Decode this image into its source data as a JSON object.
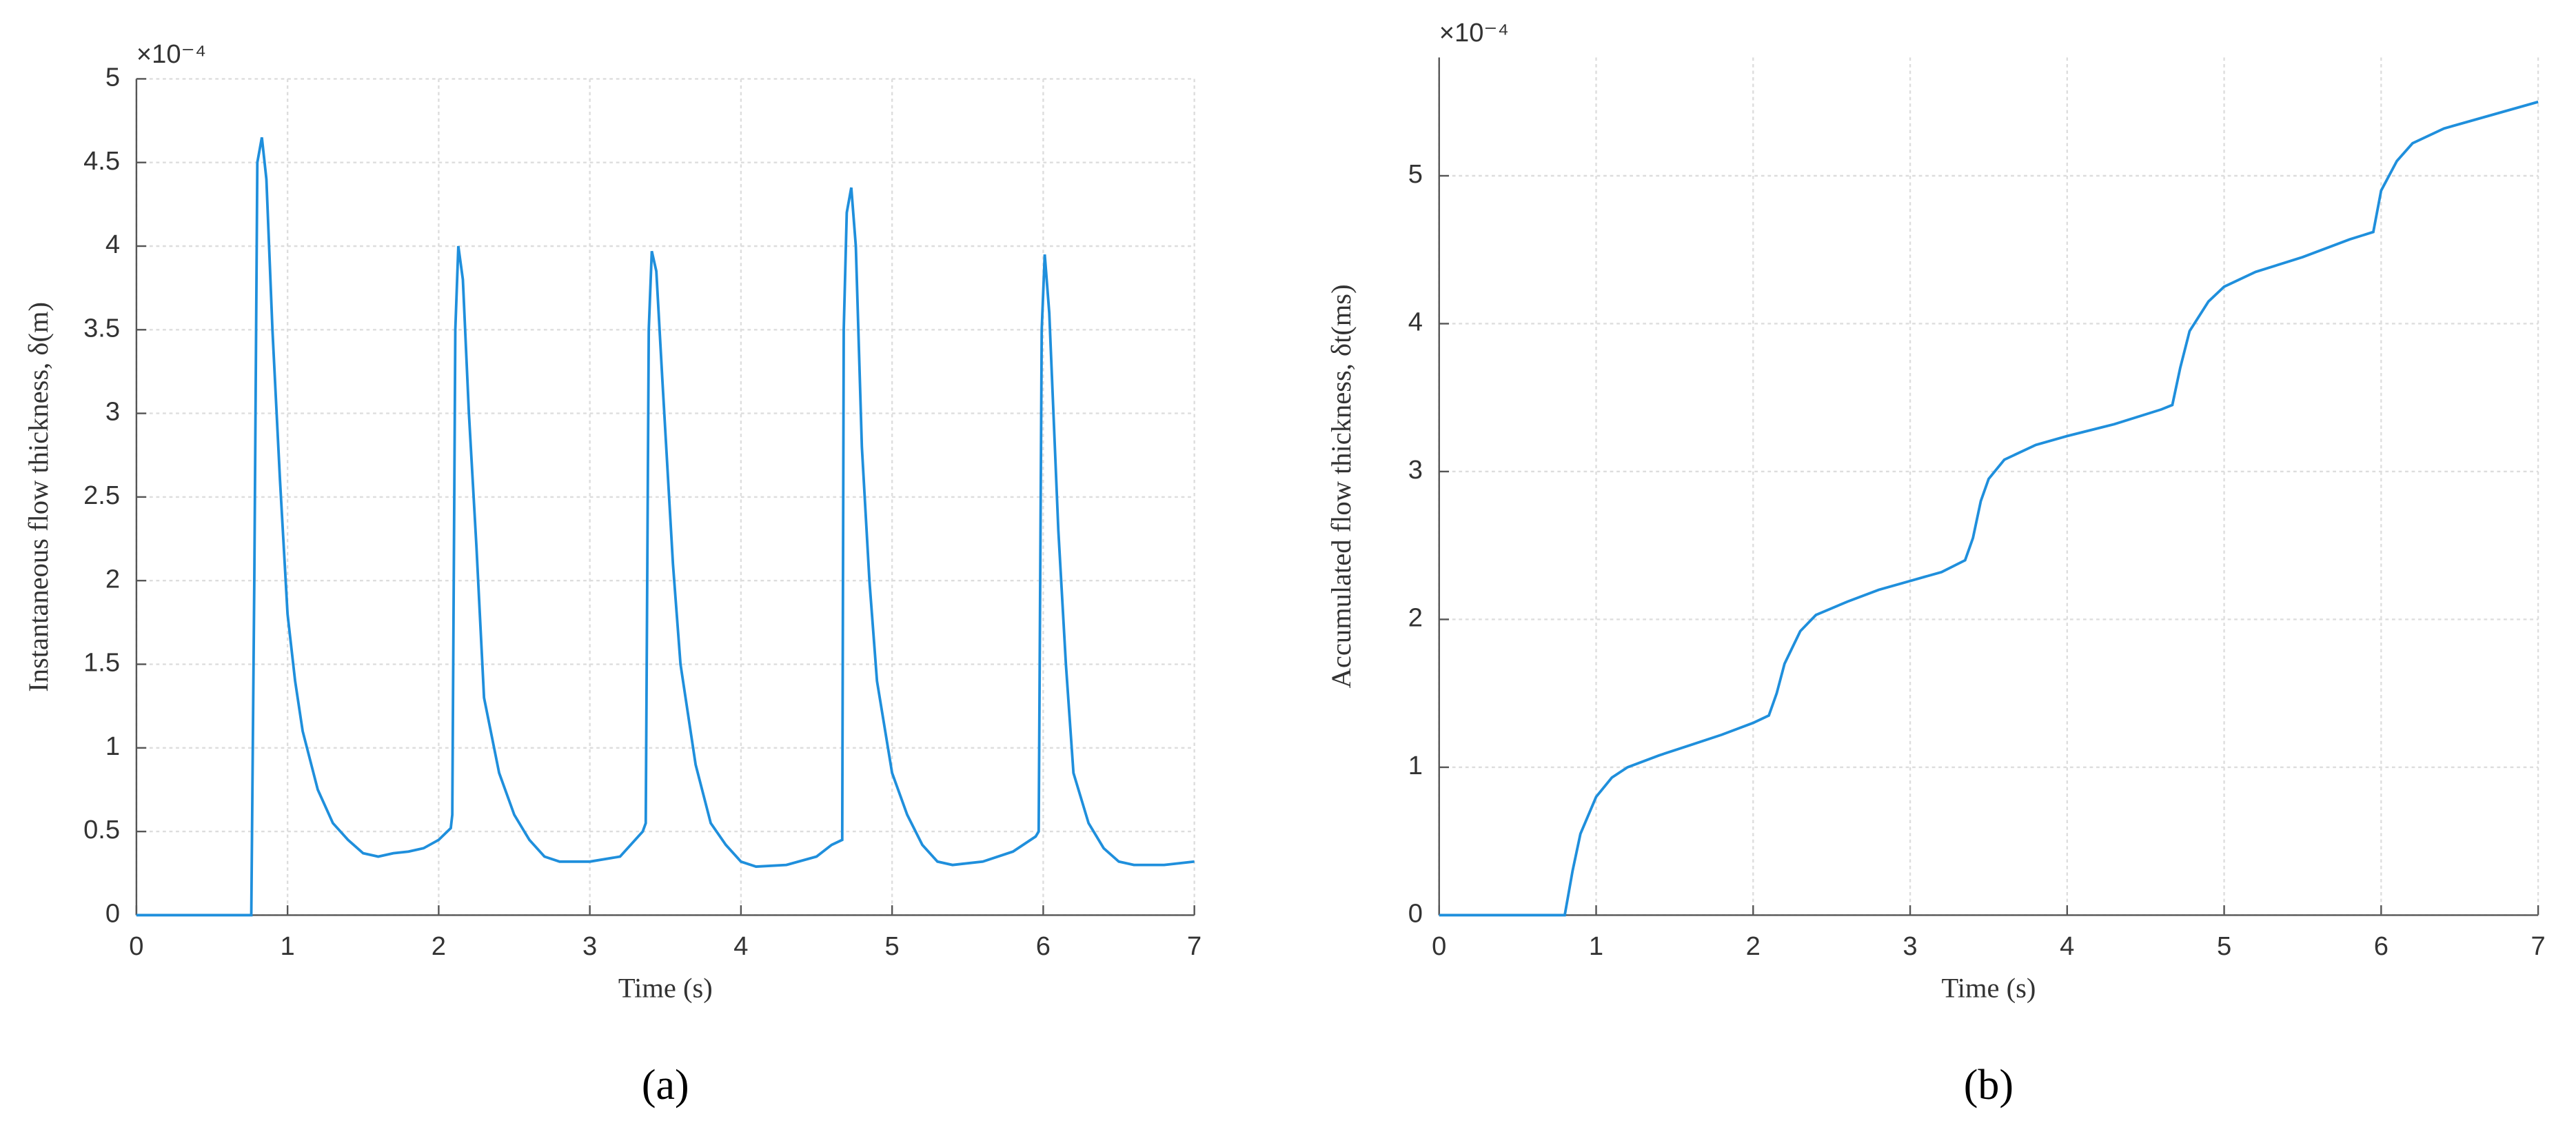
{
  "chart_data": [
    {
      "type": "line",
      "caption": "(a)",
      "exponent_label": "×10⁻⁴",
      "xlabel": "Time (s)",
      "ylabel": "Instantaneous flow thickness, δ(m)",
      "xlim": [
        0,
        7
      ],
      "xticks": [
        0,
        1,
        2,
        3,
        4,
        5,
        6,
        7
      ],
      "ylim": [
        0,
        5
      ],
      "yticks": [
        0,
        0.5,
        1,
        1.5,
        2,
        2.5,
        3,
        3.5,
        4,
        4.5,
        5
      ],
      "grid": true,
      "x": [
        0,
        0.75,
        0.76,
        0.78,
        0.8,
        0.83,
        0.86,
        0.9,
        0.95,
        1.0,
        1.05,
        1.1,
        1.2,
        1.3,
        1.4,
        1.5,
        1.6,
        1.7,
        1.8,
        1.9,
        2.0,
        2.08,
        2.09,
        2.11,
        2.13,
        2.16,
        2.2,
        2.25,
        2.3,
        2.4,
        2.5,
        2.6,
        2.7,
        2.8,
        3.0,
        3.2,
        3.35,
        3.37,
        3.39,
        3.41,
        3.44,
        3.48,
        3.55,
        3.6,
        3.7,
        3.8,
        3.9,
        4.0,
        4.1,
        4.3,
        4.5,
        4.6,
        4.67,
        4.68,
        4.7,
        4.73,
        4.76,
        4.8,
        4.85,
        4.9,
        5.0,
        5.1,
        5.2,
        5.3,
        5.4,
        5.6,
        5.8,
        5.95,
        5.97,
        5.99,
        6.01,
        6.04,
        6.1,
        6.15,
        6.2,
        6.3,
        6.4,
        6.5,
        6.6,
        6.8,
        7.0
      ],
      "series": [
        {
          "color": "#1f8fdc",
          "values": [
            0,
            0,
            0,
            2.0,
            4.5,
            4.65,
            4.4,
            3.5,
            2.6,
            1.8,
            1.4,
            1.1,
            0.75,
            0.55,
            0.45,
            0.37,
            0.35,
            0.37,
            0.38,
            0.4,
            0.45,
            0.52,
            0.6,
            3.5,
            4.0,
            3.8,
            3.0,
            2.2,
            1.3,
            0.85,
            0.6,
            0.45,
            0.35,
            0.32,
            0.32,
            0.35,
            0.5,
            0.55,
            3.5,
            3.97,
            3.85,
            3.2,
            2.1,
            1.5,
            0.9,
            0.55,
            0.42,
            0.32,
            0.29,
            0.3,
            0.35,
            0.42,
            0.45,
            3.5,
            4.2,
            4.35,
            4.0,
            2.8,
            2.0,
            1.4,
            0.85,
            0.6,
            0.42,
            0.32,
            0.3,
            0.32,
            0.38,
            0.47,
            0.5,
            3.5,
            3.95,
            3.6,
            2.3,
            1.5,
            0.85,
            0.55,
            0.4,
            0.32,
            0.3,
            0.3,
            0.32
          ]
        }
      ]
    },
    {
      "type": "line",
      "caption": "(b)",
      "exponent_label": "×10⁻⁴",
      "xlabel": "Time (s)",
      "ylabel": "Accumulated flow thickness, δt(ms)",
      "xlim": [
        0,
        7
      ],
      "xticks": [
        0,
        1,
        2,
        3,
        4,
        5,
        6,
        7
      ],
      "ylim": [
        0,
        5.8
      ],
      "yticks": [
        0,
        1,
        2,
        3,
        4,
        5
      ],
      "grid": true,
      "x": [
        0,
        0.8,
        0.85,
        0.9,
        1.0,
        1.1,
        1.2,
        1.4,
        1.6,
        1.8,
        2.0,
        2.1,
        2.15,
        2.2,
        2.3,
        2.4,
        2.6,
        2.8,
        3.0,
        3.2,
        3.35,
        3.4,
        3.45,
        3.5,
        3.6,
        3.8,
        4.0,
        4.3,
        4.6,
        4.67,
        4.72,
        4.78,
        4.9,
        5.0,
        5.2,
        5.5,
        5.8,
        5.95,
        6.0,
        6.1,
        6.2,
        6.4,
        6.6,
        7.0
      ],
      "series": [
        {
          "color": "#1f8fdc",
          "values": [
            0,
            0,
            0.3,
            0.55,
            0.8,
            0.93,
            1.0,
            1.08,
            1.15,
            1.22,
            1.3,
            1.35,
            1.5,
            1.7,
            1.92,
            2.03,
            2.12,
            2.2,
            2.26,
            2.32,
            2.4,
            2.55,
            2.8,
            2.95,
            3.08,
            3.18,
            3.24,
            3.32,
            3.42,
            3.45,
            3.7,
            3.95,
            4.15,
            4.25,
            4.35,
            4.45,
            4.57,
            4.62,
            4.9,
            5.1,
            5.22,
            5.32,
            5.38,
            5.5
          ]
        }
      ]
    }
  ]
}
